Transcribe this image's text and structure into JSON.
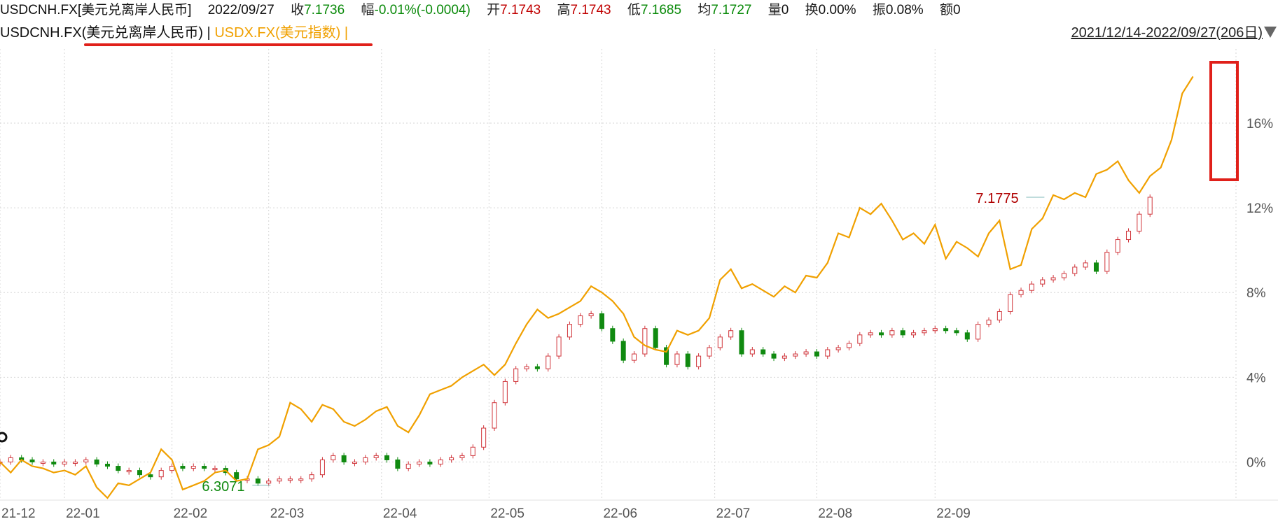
{
  "header": {
    "symbol": "USDCNH.FX[美元兑离岸人民币]",
    "date": "2022/09/27",
    "close_label": "收",
    "close": "7.1736",
    "change_label": "幅",
    "change": "-0.01%(-0.0004)",
    "open_label": "开",
    "open": "7.1743",
    "high_label": "高",
    "high": "7.1743",
    "low_label": "低",
    "low": "7.1685",
    "avg_label": "均",
    "avg": "7.1727",
    "vol_label": "量",
    "vol": "0",
    "turnover_label": "换",
    "turnover": "0.00%",
    "amplitude_label": "振",
    "amplitude": "0.08%",
    "amount_label": "额",
    "amount": "0"
  },
  "legend": {
    "series1": "USDCNH.FX(美元兑离岸人民币) |",
    "series2": "USDX.FX(美元指数) |",
    "range": "2021/12/14-2022/09/27(206日)"
  },
  "colors": {
    "usdx_line": "#f0a000",
    "up_candle": "#d0343a",
    "down_candle": "#108a10",
    "annotation_red": "#e0201a",
    "grid": "#d6d6d6"
  },
  "chart_data": {
    "type": "line",
    "y_unit": "%",
    "ylim": [
      -1.8,
      19.5
    ],
    "y_ticks": [
      "0%",
      "4%",
      "8%",
      "12%",
      "16%"
    ],
    "y_tick_values": [
      0,
      4,
      8,
      12,
      16
    ],
    "x_ticks": [
      "21-12",
      "22-01",
      "22-02",
      "22-03",
      "22-04",
      "22-05",
      "22-06",
      "22-07",
      "22-08",
      "22-09"
    ],
    "x_tick_index": [
      0,
      12,
      32,
      50,
      71,
      91,
      112,
      133,
      152,
      174
    ],
    "x_count": 200,
    "annotations": [
      {
        "label": "6.3071",
        "x": 48,
        "y": -1.1,
        "color": "#108a10"
      },
      {
        "label": "7.1775",
        "x": 192,
        "y": 12.5,
        "color": "#b00000"
      }
    ],
    "series": [
      {
        "name": "USDX.FX(美元指数)",
        "style": "line",
        "points": [
          [
            0,
            0
          ],
          [
            2,
            -0.5
          ],
          [
            4,
            0.1
          ],
          [
            6,
            -0.2
          ],
          [
            8,
            -0.3
          ],
          [
            10,
            -0.5
          ],
          [
            12,
            -0.4
          ],
          [
            14,
            -0.6
          ],
          [
            16,
            -0.2
          ],
          [
            18,
            -1.2
          ],
          [
            20,
            -1.7
          ],
          [
            22,
            -1.0
          ],
          [
            24,
            -1.1
          ],
          [
            26,
            -0.8
          ],
          [
            28,
            -0.5
          ],
          [
            30,
            0.6
          ],
          [
            32,
            0.1
          ],
          [
            34,
            -1.3
          ],
          [
            36,
            -1.1
          ],
          [
            38,
            -0.9
          ],
          [
            40,
            -0.5
          ],
          [
            42,
            -0.4
          ],
          [
            44,
            -0.9
          ],
          [
            46,
            -0.8
          ],
          [
            48,
            0.6
          ],
          [
            50,
            0.8
          ],
          [
            52,
            1.2
          ],
          [
            54,
            2.8
          ],
          [
            56,
            2.5
          ],
          [
            58,
            1.9
          ],
          [
            60,
            2.7
          ],
          [
            62,
            2.5
          ],
          [
            64,
            1.9
          ],
          [
            66,
            1.7
          ],
          [
            68,
            2.0
          ],
          [
            70,
            2.4
          ],
          [
            72,
            2.6
          ],
          [
            74,
            1.7
          ],
          [
            76,
            1.4
          ],
          [
            78,
            2.2
          ],
          [
            80,
            3.2
          ],
          [
            82,
            3.4
          ],
          [
            84,
            3.6
          ],
          [
            86,
            4.0
          ],
          [
            88,
            4.3
          ],
          [
            90,
            4.6
          ],
          [
            92,
            4.1
          ],
          [
            94,
            4.6
          ],
          [
            96,
            5.6
          ],
          [
            98,
            6.5
          ],
          [
            100,
            7.2
          ],
          [
            102,
            6.8
          ],
          [
            104,
            7.0
          ],
          [
            106,
            7.3
          ],
          [
            108,
            7.6
          ],
          [
            110,
            8.3
          ],
          [
            112,
            8.0
          ],
          [
            114,
            7.6
          ],
          [
            116,
            7.0
          ],
          [
            118,
            5.9
          ],
          [
            120,
            5.5
          ],
          [
            122,
            5.3
          ],
          [
            124,
            5.2
          ],
          [
            126,
            6.2
          ],
          [
            128,
            6.0
          ],
          [
            130,
            6.2
          ],
          [
            132,
            6.8
          ],
          [
            134,
            8.6
          ],
          [
            136,
            9.1
          ],
          [
            138,
            8.2
          ],
          [
            140,
            8.4
          ],
          [
            142,
            8.1
          ],
          [
            144,
            7.8
          ],
          [
            146,
            8.3
          ],
          [
            148,
            8.0
          ],
          [
            150,
            8.8
          ],
          [
            152,
            8.7
          ],
          [
            154,
            9.4
          ],
          [
            156,
            10.8
          ],
          [
            158,
            10.6
          ],
          [
            160,
            12.0
          ],
          [
            162,
            11.7
          ],
          [
            164,
            12.2
          ],
          [
            166,
            11.4
          ],
          [
            168,
            10.5
          ],
          [
            170,
            10.8
          ],
          [
            172,
            10.3
          ],
          [
            174,
            11.2
          ],
          [
            176,
            9.6
          ],
          [
            178,
            10.4
          ],
          [
            180,
            10.1
          ],
          [
            182,
            9.7
          ],
          [
            184,
            10.8
          ],
          [
            186,
            11.4
          ],
          [
            188,
            9.1
          ],
          [
            190,
            9.3
          ],
          [
            192,
            11.0
          ],
          [
            194,
            11.5
          ],
          [
            196,
            12.6
          ],
          [
            198,
            12.4
          ],
          [
            200,
            12.7
          ],
          [
            202,
            12.5
          ],
          [
            204,
            13.6
          ],
          [
            206,
            13.8
          ],
          [
            208,
            14.2
          ],
          [
            210,
            13.3
          ],
          [
            212,
            12.7
          ],
          [
            214,
            13.5
          ],
          [
            216,
            13.9
          ],
          [
            218,
            15.2
          ],
          [
            220,
            17.4
          ],
          [
            222,
            18.2
          ]
        ]
      },
      {
        "name": "USDCNH.FX(美元兑离岸人民币)",
        "style": "candlestick",
        "points": [
          [
            0,
            0
          ],
          [
            2,
            0.2
          ],
          [
            4,
            0.1
          ],
          [
            6,
            0.0
          ],
          [
            8,
            0.0
          ],
          [
            10,
            -0.1
          ],
          [
            12,
            0.0
          ],
          [
            14,
            0.0
          ],
          [
            16,
            0.1
          ],
          [
            18,
            -0.1
          ],
          [
            20,
            -0.2
          ],
          [
            22,
            -0.4
          ],
          [
            24,
            -0.4
          ],
          [
            26,
            -0.6
          ],
          [
            28,
            -0.7
          ],
          [
            30,
            -0.4
          ],
          [
            32,
            -0.2
          ],
          [
            34,
            -0.3
          ],
          [
            36,
            -0.2
          ],
          [
            38,
            -0.3
          ],
          [
            40,
            -0.3
          ],
          [
            42,
            -0.5
          ],
          [
            44,
            -0.8
          ],
          [
            46,
            -0.8
          ],
          [
            48,
            -1.0
          ],
          [
            50,
            -0.9
          ],
          [
            52,
            -0.8
          ],
          [
            54,
            -0.8
          ],
          [
            56,
            -0.8
          ],
          [
            58,
            -0.6
          ],
          [
            60,
            0.1
          ],
          [
            62,
            0.3
          ],
          [
            64,
            0.0
          ],
          [
            66,
            0.0
          ],
          [
            68,
            0.2
          ],
          [
            70,
            0.3
          ],
          [
            72,
            0.1
          ],
          [
            74,
            -0.3
          ],
          [
            76,
            -0.1
          ],
          [
            78,
            0.0
          ],
          [
            80,
            -0.1
          ],
          [
            82,
            0.1
          ],
          [
            84,
            0.2
          ],
          [
            86,
            0.3
          ],
          [
            88,
            0.7
          ],
          [
            90,
            1.6
          ],
          [
            92,
            2.8
          ],
          [
            94,
            3.8
          ],
          [
            96,
            4.4
          ],
          [
            98,
            4.5
          ],
          [
            100,
            4.4
          ],
          [
            102,
            5.0
          ],
          [
            104,
            5.9
          ],
          [
            106,
            6.5
          ],
          [
            108,
            6.9
          ],
          [
            110,
            7.0
          ],
          [
            112,
            6.3
          ],
          [
            114,
            5.7
          ],
          [
            116,
            4.8
          ],
          [
            118,
            5.1
          ],
          [
            120,
            6.3
          ],
          [
            122,
            5.4
          ],
          [
            124,
            4.6
          ],
          [
            126,
            5.1
          ],
          [
            128,
            4.5
          ],
          [
            130,
            5.0
          ],
          [
            132,
            5.4
          ],
          [
            134,
            5.9
          ],
          [
            136,
            6.2
          ],
          [
            138,
            5.1
          ],
          [
            140,
            5.3
          ],
          [
            142,
            5.1
          ],
          [
            144,
            4.9
          ],
          [
            146,
            5.0
          ],
          [
            148,
            5.1
          ],
          [
            150,
            5.2
          ],
          [
            152,
            5.0
          ],
          [
            154,
            5.3
          ],
          [
            156,
            5.4
          ],
          [
            158,
            5.6
          ],
          [
            160,
            6.0
          ],
          [
            162,
            6.1
          ],
          [
            164,
            6.0
          ],
          [
            166,
            6.2
          ],
          [
            168,
            6.0
          ],
          [
            170,
            6.1
          ],
          [
            172,
            6.2
          ],
          [
            174,
            6.3
          ],
          [
            176,
            6.2
          ],
          [
            178,
            6.1
          ],
          [
            180,
            5.8
          ],
          [
            182,
            6.5
          ],
          [
            184,
            6.7
          ],
          [
            186,
            7.1
          ],
          [
            188,
            7.9
          ],
          [
            190,
            8.1
          ],
          [
            192,
            8.4
          ],
          [
            194,
            8.6
          ],
          [
            196,
            8.7
          ],
          [
            198,
            8.9
          ],
          [
            200,
            9.2
          ],
          [
            202,
            9.4
          ],
          [
            204,
            9.0
          ],
          [
            206,
            9.9
          ],
          [
            208,
            10.5
          ],
          [
            210,
            10.9
          ],
          [
            212,
            11.7
          ],
          [
            214,
            12.5
          ]
        ]
      }
    ]
  }
}
